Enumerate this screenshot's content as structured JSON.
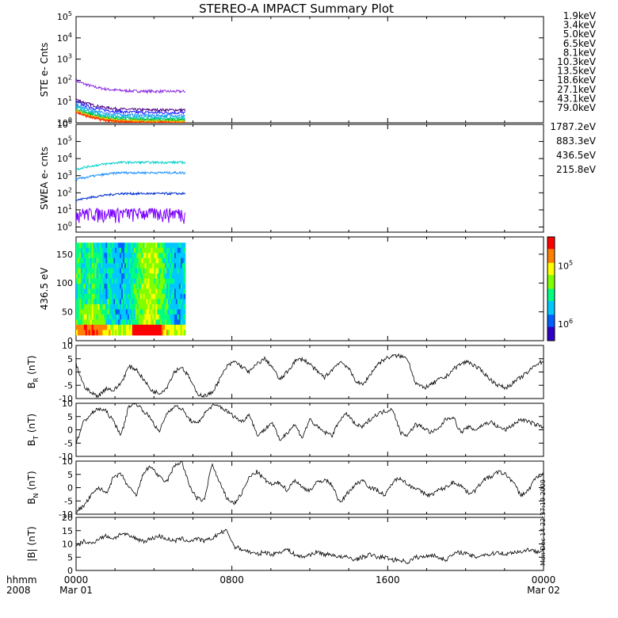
{
  "title": "STEREO-A IMPACT Summary Plot",
  "x_axis": {
    "label_row1": "hhmm",
    "label_row2": "2008",
    "ticks": [
      {
        "hour": 0,
        "row1": "0000",
        "row2": "Mar 01"
      },
      {
        "hour": 8,
        "row1": "0800",
        "row2": ""
      },
      {
        "hour": 16,
        "row1": "1600",
        "row2": ""
      },
      {
        "hour": 24,
        "row1": "0000",
        "row2": "Mar 02"
      }
    ],
    "range_hours": [
      0,
      24
    ]
  },
  "side_stamp": "Mon Dec 14 22:37:19 2009",
  "chart_data": [
    {
      "type": "line",
      "ylabel": "STE e- Cnts",
      "yscale": "log",
      "ylim": [
        1,
        100000
      ],
      "yticks": [
        "10^0",
        "10^1",
        "10^2",
        "10^3",
        "10^4",
        "10^5"
      ],
      "x_extent_hours": [
        0,
        5.6
      ],
      "series": [
        {
          "name": "1.9keV",
          "color": "#8a2be2",
          "level": 30
        },
        {
          "name": "3.4keV",
          "color": "#4b0082",
          "level": 4
        },
        {
          "name": "5.0keV",
          "color": "#1a1aff",
          "level": 3
        },
        {
          "name": "6.5keV",
          "color": "#1e90ff",
          "level": 2.2
        },
        {
          "name": "8.1keV",
          "color": "#00bcd4",
          "level": 1.8
        },
        {
          "name": "10.3keV",
          "color": "#00c8a0",
          "level": 1.5
        },
        {
          "name": "13.5keV",
          "color": "#00c000",
          "level": 1.3
        },
        {
          "name": "18.6keV",
          "color": "#9acd32",
          "level": 1.2
        },
        {
          "name": "27.1keV",
          "color": "#ffd700",
          "level": 1.1
        },
        {
          "name": "43.1keV",
          "color": "#ff8c00",
          "level": 1.05
        },
        {
          "name": "79.0keV",
          "color": "#ff2000",
          "level": 1.0
        }
      ]
    },
    {
      "type": "line",
      "ylabel": "SWEA e- cnts",
      "yscale": "log",
      "ylim": [
        0.5,
        1000000
      ],
      "yticks": [
        "10^0",
        "10^1",
        "10^2",
        "10^3",
        "10^4",
        "10^5",
        "10^6"
      ],
      "x_extent_hours": [
        0,
        5.6
      ],
      "series": [
        {
          "name": "1787.2eV",
          "color": "#7a00ff",
          "level": 5
        },
        {
          "name": "883.3eV",
          "color": "#0030d0",
          "level": 90
        },
        {
          "name": "436.5eV",
          "color": "#1e90ff",
          "level": 1500
        },
        {
          "name": "215.8eV",
          "color": "#00d0c8",
          "level": 6000
        }
      ]
    },
    {
      "type": "heatmap",
      "ylabel": "436.5 eV",
      "ylim": [
        0,
        180
      ],
      "yticks": [
        0,
        50,
        100,
        150
      ],
      "x_extent_hours": [
        0,
        5.6
      ],
      "colorbar": {
        "scale": "log",
        "ticks": [
          "10^5",
          "10^6"
        ],
        "colors": [
          "#3000c8",
          "#0060ff",
          "#00c8ff",
          "#00ff80",
          "#80ff00",
          "#ffff00",
          "#ff8000",
          "#ff0000"
        ]
      }
    },
    {
      "type": "line",
      "ylabel": "B_R (nT)",
      "ylim": [
        -10,
        10
      ],
      "yticks": [
        -10,
        -5,
        0,
        5,
        10
      ],
      "series": [
        {
          "name": "",
          "values": [
            3,
            -5,
            -8,
            -9,
            -6,
            -7,
            -4,
            2,
            1,
            -3,
            -7,
            -8,
            -6,
            0,
            2,
            -2,
            -8,
            -9,
            -8,
            -3,
            2,
            4,
            2,
            0,
            3,
            5,
            2,
            -3,
            0,
            4,
            5,
            3,
            0,
            -2,
            1,
            4,
            2,
            -3,
            -5,
            -1,
            3,
            5,
            6,
            6,
            5,
            -4,
            -6,
            -5,
            -3,
            -2,
            1,
            3,
            4,
            2,
            0,
            -3,
            -5,
            -6,
            -4,
            -2,
            0,
            3,
            4
          ]
        }
      ]
    },
    {
      "type": "line",
      "ylabel": "B_T (nT)",
      "ylim": [
        -10,
        10
      ],
      "yticks": [
        -10,
        -5,
        0,
        5,
        10
      ],
      "series": [
        {
          "name": "",
          "values": [
            -5,
            3,
            6,
            8,
            7,
            3,
            -2,
            9,
            10,
            7,
            4,
            -1,
            6,
            9,
            8,
            4,
            2,
            6,
            9,
            9,
            7,
            5,
            3,
            6,
            -2,
            0,
            3,
            -4,
            -1,
            2,
            -3,
            4,
            1,
            -1,
            -2,
            4,
            6,
            2,
            1,
            4,
            6,
            7,
            8,
            -1,
            -2,
            2,
            1,
            -1,
            0,
            4,
            5,
            -1,
            1,
            0,
            2,
            3,
            1,
            0,
            2,
            4,
            3,
            2,
            1
          ]
        }
      ]
    },
    {
      "type": "line",
      "ylabel": "B_N (nT)",
      "ylim": [
        -10,
        10
      ],
      "yticks": [
        -10,
        -5,
        0,
        5,
        10
      ],
      "series": [
        {
          "name": "",
          "values": [
            -9,
            -7,
            -3,
            0,
            -2,
            4,
            5,
            0,
            -3,
            6,
            8,
            4,
            2,
            8,
            10,
            1,
            -4,
            -5,
            9,
            2,
            -4,
            -6,
            -2,
            4,
            6,
            3,
            1,
            2,
            -1,
            3,
            0,
            -1,
            2,
            3,
            1,
            -6,
            -2,
            1,
            3,
            0,
            -1,
            -3,
            2,
            4,
            1,
            0,
            -2,
            -3,
            -1,
            0,
            2,
            1,
            -2,
            -1,
            3,
            4,
            6,
            5,
            2,
            -3,
            -1,
            4,
            5
          ]
        }
      ]
    },
    {
      "type": "line",
      "ylabel": "|B| (nT)",
      "ylim": [
        0,
        20
      ],
      "yticks": [
        0,
        5,
        10,
        15,
        20
      ],
      "series": [
        {
          "name": "",
          "values": [
            9,
            11,
            10,
            12,
            13,
            12,
            14,
            13,
            12,
            11,
            12,
            13,
            12,
            11,
            12,
            11,
            12,
            11,
            12,
            14,
            15,
            9,
            8,
            7,
            6,
            7,
            6,
            7,
            8,
            6,
            5,
            6,
            7,
            6,
            6,
            5,
            5,
            4,
            5,
            6,
            5,
            5,
            4,
            4,
            3,
            5,
            5,
            6,
            5,
            4,
            6,
            7,
            6,
            5,
            6,
            6,
            7,
            6,
            7,
            7,
            8,
            7,
            8
          ]
        }
      ]
    }
  ]
}
